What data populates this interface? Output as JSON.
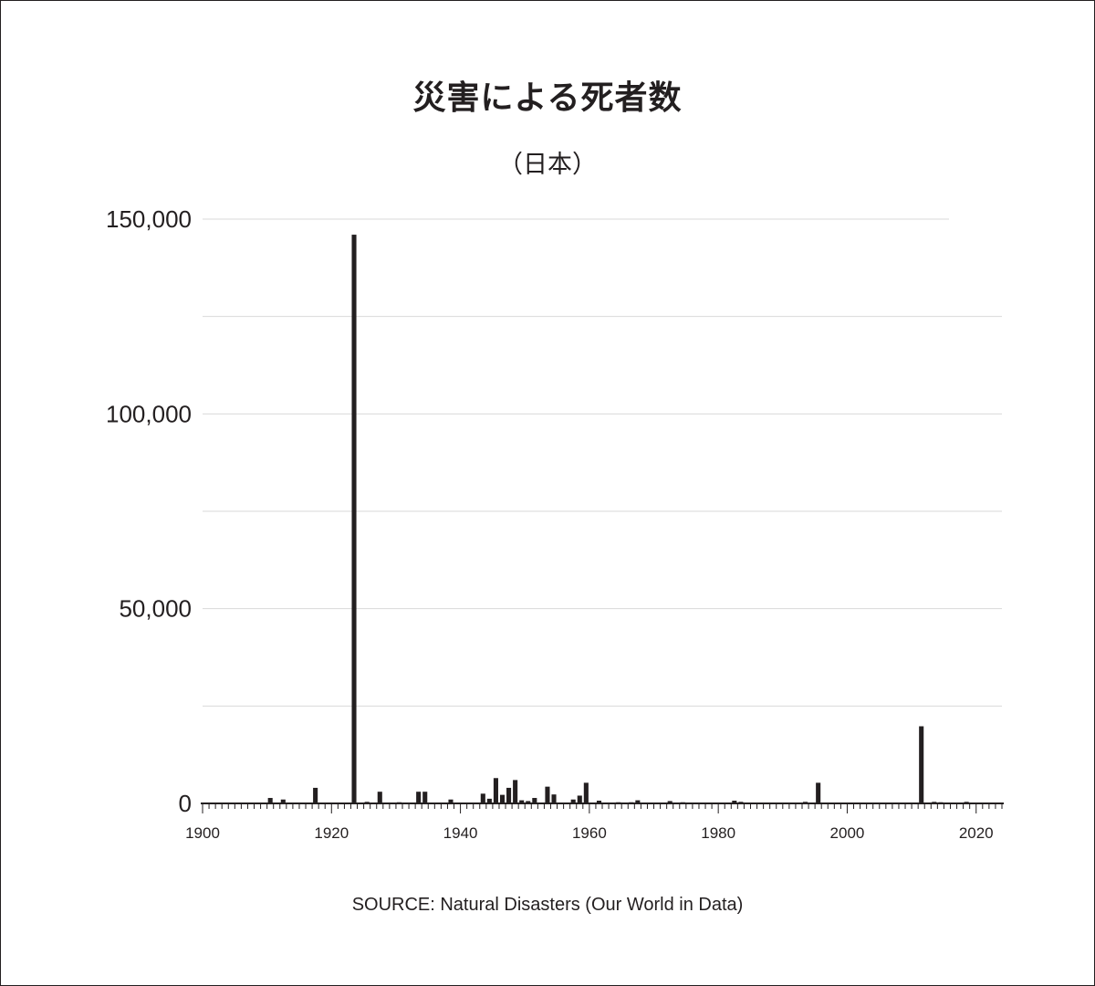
{
  "chart_data": {
    "type": "bar",
    "title": "災害による死者数",
    "subtitle": "（日本）",
    "xlabel": "",
    "ylabel": "",
    "xlim": [
      1900,
      2024
    ],
    "ylim": [
      0,
      150000
    ],
    "yticks": [
      0,
      50000,
      100000,
      150000
    ],
    "ytick_labels": [
      "0",
      "50,000",
      "100,000",
      "150,000"
    ],
    "xticks": [
      1900,
      1920,
      1940,
      1960,
      1980,
      2000,
      2020
    ],
    "grid": true,
    "legend": "none",
    "bar_color": "#231f20",
    "grid_color": "#d9d9d9",
    "series": [
      {
        "x": [
          1910,
          1912,
          1917,
          1923,
          1925,
          1927,
          1930,
          1933,
          1934,
          1938,
          1943,
          1944,
          1945,
          1946,
          1947,
          1948,
          1949,
          1950,
          1951,
          1953,
          1954,
          1957,
          1958,
          1959,
          1961,
          1964,
          1966,
          1967,
          1972,
          1974,
          1982,
          1983,
          1993,
          1995,
          2004,
          2011,
          2013,
          2014,
          2018
        ],
        "values": [
          1400,
          1000,
          4000,
          146000,
          400,
          3000,
          300,
          3000,
          3000,
          1000,
          2500,
          1200,
          6500,
          2200,
          4000,
          6000,
          800,
          600,
          1400,
          4300,
          2300,
          1000,
          2000,
          5300,
          700,
          300,
          300,
          800,
          600,
          300,
          700,
          400,
          400,
          5300,
          200,
          19800,
          400,
          300,
          400
        ]
      }
    ]
  },
  "source_text": "SOURCE: Natural Disasters (Our World in Data)"
}
